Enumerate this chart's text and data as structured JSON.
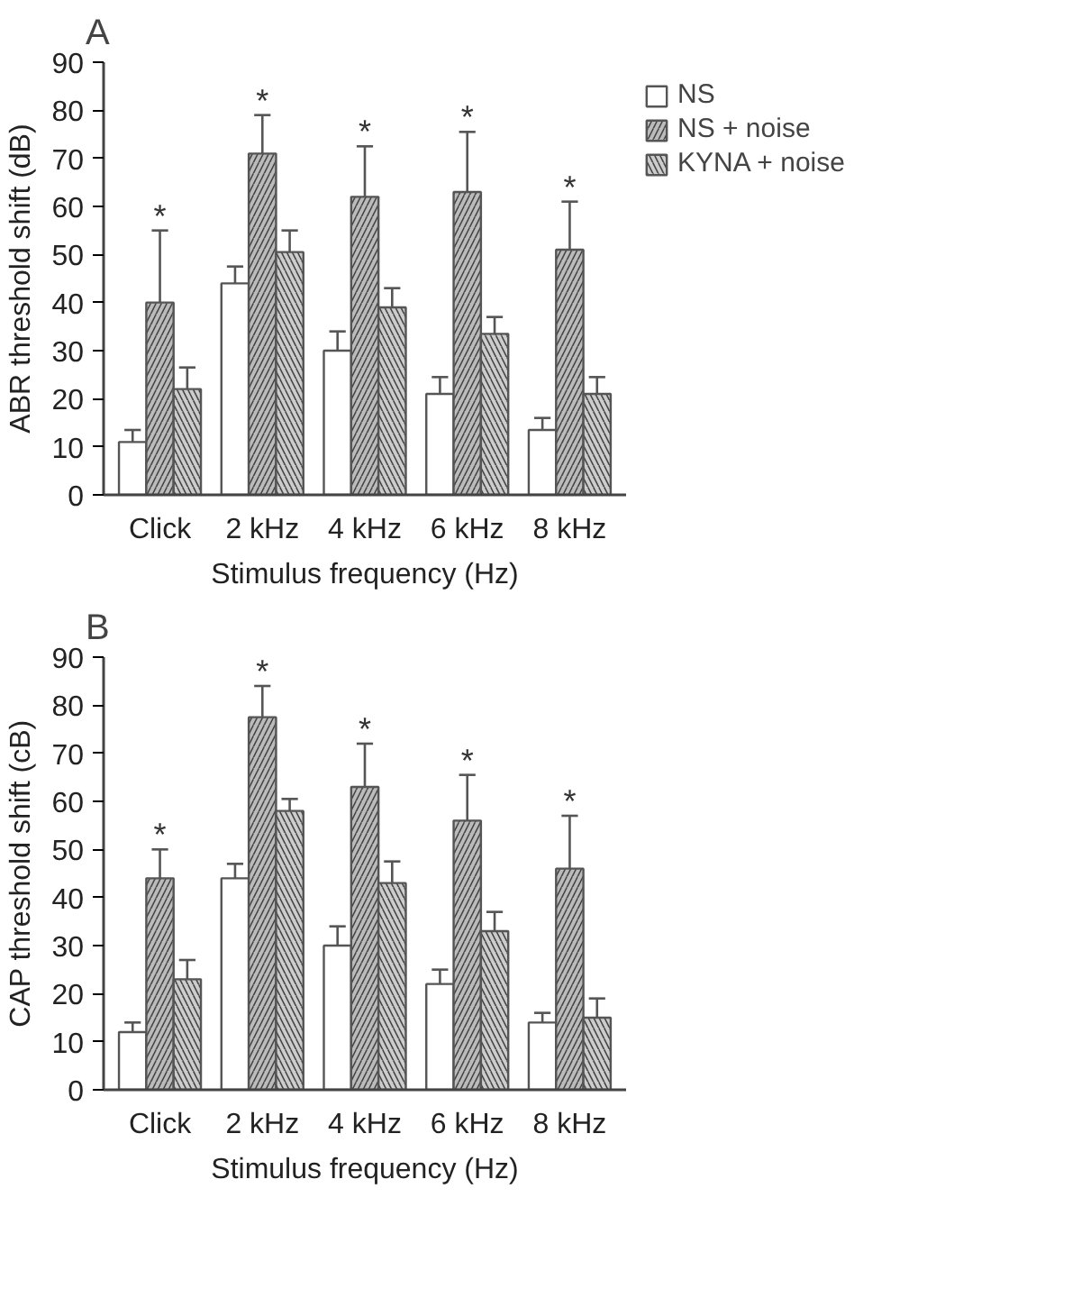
{
  "chart_data": [
    {
      "type": "bar",
      "title": "A",
      "xlabel": "Stimulus frequency (Hz)",
      "ylabel": "ABR threshold shift (dB)",
      "categories": [
        "Click",
        "2 kHz",
        "4 kHz",
        "6 kHz",
        "8 kHz"
      ],
      "ylim": [
        0,
        90
      ],
      "yticks": [
        0,
        10,
        20,
        30,
        40,
        50,
        60,
        70,
        80,
        90
      ],
      "grid": false,
      "legend": "top right",
      "series": [
        {
          "name": "NS",
          "color": "#ffffff",
          "values": [
            11,
            44,
            30,
            21,
            13.5
          ],
          "errors": [
            [
              11,
              13.5
            ],
            [
              44,
              47.5
            ],
            [
              30,
              34
            ],
            [
              21,
              24.5
            ],
            [
              13.5,
              16
            ]
          ]
        },
        {
          "name": "NS + noise",
          "color": "#bbbbbb",
          "values": [
            40,
            71,
            62,
            63,
            51
          ],
          "errors": [
            [
              40,
              55
            ],
            [
              71,
              79
            ],
            [
              62,
              72.5
            ],
            [
              63,
              75.5
            ],
            [
              51,
              61
            ]
          ]
        },
        {
          "name": "KYNA + noise",
          "color": "#cccccc",
          "values": [
            22,
            50.5,
            39,
            33.5,
            21
          ],
          "errors": [
            [
              22,
              26.5
            ],
            [
              50.5,
              55
            ],
            [
              39,
              43
            ],
            [
              33.5,
              37
            ],
            [
              21,
              24.5
            ]
          ]
        }
      ],
      "annotations": [
        "*",
        "*",
        "*",
        "*",
        "*"
      ]
    },
    {
      "type": "bar",
      "title": "B",
      "xlabel": "Stimulus frequency (Hz)",
      "ylabel": "CAP threshold shift (cB)",
      "categories": [
        "Click",
        "2 kHz",
        "4 kHz",
        "6 kHz",
        "8 kHz"
      ],
      "ylim": [
        0,
        90
      ],
      "yticks": [
        0,
        10,
        20,
        30,
        40,
        50,
        60,
        70,
        80,
        90
      ],
      "grid": false,
      "series": [
        {
          "color": "#ffffff",
          "values": [
            12,
            44,
            30,
            22,
            14
          ],
          "errors": [
            [
              12,
              14
            ],
            [
              44,
              47
            ],
            [
              30,
              34
            ],
            [
              22,
              25
            ],
            [
              14,
              16
            ]
          ]
        },
        {
          "color": "#bbbbbb",
          "values": [
            44,
            77.5,
            63,
            56,
            46
          ],
          "errors": [
            [
              44,
              50
            ],
            [
              77.5,
              84
            ],
            [
              63,
              72
            ],
            [
              56,
              65.5
            ],
            [
              46,
              57
            ]
          ]
        },
        {
          "color": "#cccccc",
          "values": [
            23,
            58,
            43,
            33,
            15
          ],
          "errors": [
            [
              23,
              27
            ],
            [
              58,
              60.5
            ],
            [
              43,
              47.5
            ],
            [
              33,
              37
            ],
            [
              15,
              19
            ]
          ]
        }
      ],
      "annotations": [
        "*",
        "*",
        "*",
        "*",
        "*"
      ]
    }
  ]
}
